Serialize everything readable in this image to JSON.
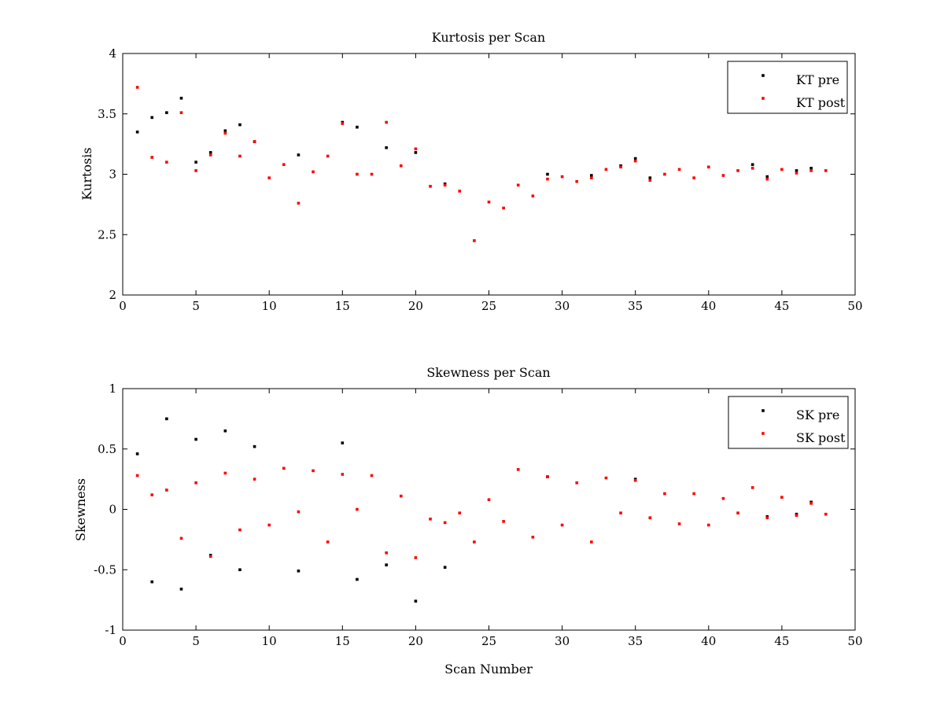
{
  "chart_data": [
    {
      "type": "scatter",
      "title": "Kurtosis per Scan",
      "xlabel": "",
      "ylabel": "Kurtosis",
      "xlim": [
        0,
        50
      ],
      "ylim": [
        2,
        4
      ],
      "xticks": [
        "0",
        "5",
        "10",
        "15",
        "20",
        "25",
        "30",
        "35",
        "40",
        "45",
        "50"
      ],
      "yticks": [
        "2",
        "2.5",
        "3",
        "3.5",
        "4"
      ],
      "grid": false,
      "legend_position": "top-right",
      "series": [
        {
          "name": "KT pre",
          "color": "#000000",
          "points": [
            [
              1,
              3.35
            ],
            [
              2,
              3.47
            ],
            [
              3,
              3.51
            ],
            [
              4,
              3.63
            ],
            [
              5,
              3.1
            ],
            [
              6,
              3.18
            ],
            [
              7,
              3.36
            ],
            [
              8,
              3.41
            ],
            [
              9,
              3.27
            ],
            [
              12,
              3.16
            ],
            [
              15,
              3.43
            ],
            [
              16,
              3.39
            ],
            [
              18,
              3.22
            ],
            [
              20,
              3.18
            ],
            [
              22,
              2.92
            ],
            [
              29,
              3.0
            ],
            [
              32,
              2.99
            ],
            [
              34,
              3.07
            ],
            [
              35,
              3.13
            ],
            [
              36,
              2.97
            ],
            [
              43,
              3.08
            ],
            [
              44,
              2.98
            ],
            [
              46,
              3.03
            ],
            [
              47,
              3.05
            ]
          ]
        },
        {
          "name": "KT post",
          "color": "#ff0000",
          "points": [
            [
              1,
              3.72
            ],
            [
              2,
              3.14
            ],
            [
              3,
              3.1
            ],
            [
              4,
              3.51
            ],
            [
              5,
              3.03
            ],
            [
              6,
              3.16
            ],
            [
              7,
              3.34
            ],
            [
              8,
              3.15
            ],
            [
              9,
              3.27
            ],
            [
              10,
              2.97
            ],
            [
              11,
              3.08
            ],
            [
              12,
              2.76
            ],
            [
              13,
              3.02
            ],
            [
              14,
              3.15
            ],
            [
              15,
              3.42
            ],
            [
              16,
              3.0
            ],
            [
              17,
              3.0
            ],
            [
              18,
              3.43
            ],
            [
              19,
              3.07
            ],
            [
              20,
              3.21
            ],
            [
              21,
              2.9
            ],
            [
              22,
              2.91
            ],
            [
              23,
              2.86
            ],
            [
              24,
              2.45
            ],
            [
              25,
              2.77
            ],
            [
              26,
              2.72
            ],
            [
              27,
              2.91
            ],
            [
              28,
              2.82
            ],
            [
              29,
              2.96
            ],
            [
              30,
              2.98
            ],
            [
              31,
              2.94
            ],
            [
              32,
              2.97
            ],
            [
              33,
              3.04
            ],
            [
              34,
              3.06
            ],
            [
              35,
              3.11
            ],
            [
              36,
              2.95
            ],
            [
              37,
              3.0
            ],
            [
              38,
              3.04
            ],
            [
              39,
              2.97
            ],
            [
              40,
              3.06
            ],
            [
              41,
              2.99
            ],
            [
              42,
              3.03
            ],
            [
              43,
              3.05
            ],
            [
              44,
              2.96
            ],
            [
              45,
              3.04
            ],
            [
              46,
              3.01
            ],
            [
              47,
              3.03
            ],
            [
              48,
              3.03
            ]
          ]
        }
      ]
    },
    {
      "type": "scatter",
      "title": "Skewness per Scan",
      "xlabel": "Scan Number",
      "ylabel": "Skewness",
      "xlim": [
        0,
        50
      ],
      "ylim": [
        -1,
        1
      ],
      "xticks": [
        "0",
        "5",
        "10",
        "15",
        "20",
        "25",
        "30",
        "35",
        "40",
        "45",
        "50"
      ],
      "yticks": [
        "-1",
        "-0.5",
        "0",
        "0.5",
        "1"
      ],
      "grid": false,
      "legend_position": "top-right",
      "series": [
        {
          "name": "SK pre",
          "color": "#000000",
          "points": [
            [
              1,
              0.46
            ],
            [
              2,
              -0.6
            ],
            [
              3,
              0.75
            ],
            [
              4,
              -0.66
            ],
            [
              5,
              0.58
            ],
            [
              6,
              -0.38
            ],
            [
              7,
              0.65
            ],
            [
              8,
              -0.5
            ],
            [
              9,
              0.52
            ],
            [
              12,
              -0.51
            ],
            [
              15,
              0.55
            ],
            [
              16,
              -0.58
            ],
            [
              18,
              -0.46
            ],
            [
              20,
              -0.76
            ],
            [
              22,
              -0.48
            ],
            [
              29,
              0.27
            ],
            [
              35,
              0.25
            ],
            [
              36,
              -0.07
            ],
            [
              44,
              -0.06
            ],
            [
              46,
              -0.04
            ],
            [
              47,
              0.06
            ]
          ]
        },
        {
          "name": "SK post",
          "color": "#ff0000",
          "points": [
            [
              1,
              0.28
            ],
            [
              2,
              0.12
            ],
            [
              3,
              0.16
            ],
            [
              4,
              -0.24
            ],
            [
              5,
              0.22
            ],
            [
              6,
              -0.39
            ],
            [
              7,
              0.3
            ],
            [
              8,
              -0.17
            ],
            [
              9,
              0.25
            ],
            [
              10,
              -0.13
            ],
            [
              11,
              0.34
            ],
            [
              12,
              -0.02
            ],
            [
              13,
              0.32
            ],
            [
              14,
              -0.27
            ],
            [
              15,
              0.29
            ],
            [
              16,
              0.0
            ],
            [
              17,
              0.28
            ],
            [
              18,
              -0.36
            ],
            [
              19,
              0.11
            ],
            [
              20,
              -0.4
            ],
            [
              21,
              -0.08
            ],
            [
              22,
              -0.11
            ],
            [
              23,
              -0.03
            ],
            [
              24,
              -0.27
            ],
            [
              25,
              0.08
            ],
            [
              26,
              -0.1
            ],
            [
              27,
              0.33
            ],
            [
              28,
              -0.23
            ],
            [
              29,
              0.27
            ],
            [
              30,
              -0.13
            ],
            [
              31,
              0.22
            ],
            [
              32,
              -0.27
            ],
            [
              33,
              0.26
            ],
            [
              34,
              -0.03
            ],
            [
              35,
              0.24
            ],
            [
              36,
              -0.07
            ],
            [
              37,
              0.13
            ],
            [
              38,
              -0.12
            ],
            [
              39,
              0.13
            ],
            [
              40,
              -0.13
            ],
            [
              41,
              0.09
            ],
            [
              42,
              -0.03
            ],
            [
              43,
              0.18
            ],
            [
              44,
              -0.07
            ],
            [
              45,
              0.1
            ],
            [
              46,
              -0.05
            ],
            [
              47,
              0.05
            ],
            [
              48,
              -0.04
            ]
          ]
        }
      ]
    }
  ]
}
